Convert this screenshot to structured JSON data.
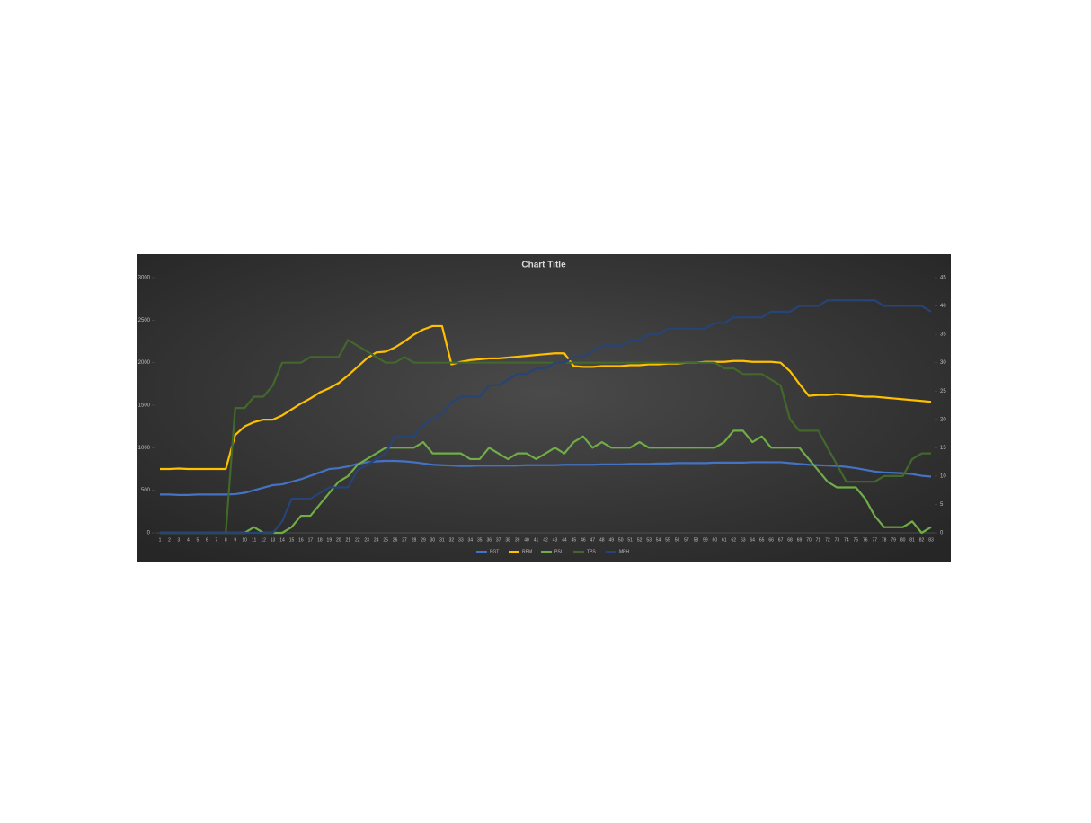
{
  "chart_data": {
    "type": "line",
    "title": "Chart Title",
    "categories": [
      "1",
      "2",
      "3",
      "4",
      "5",
      "6",
      "7",
      "8",
      "9",
      "10",
      "11",
      "12",
      "13",
      "14",
      "15",
      "16",
      "17",
      "18",
      "19",
      "20",
      "21",
      "22",
      "23",
      "24",
      "25",
      "26",
      "27",
      "28",
      "29",
      "30",
      "31",
      "32",
      "33",
      "34",
      "35",
      "36",
      "37",
      "38",
      "39",
      "40",
      "41",
      "42",
      "43",
      "44",
      "45",
      "46",
      "47",
      "48",
      "49",
      "50",
      "51",
      "52",
      "53",
      "54",
      "55",
      "56",
      "57",
      "58",
      "59",
      "60",
      "61",
      "62",
      "63",
      "64",
      "65",
      "66",
      "67",
      "68",
      "69",
      "70",
      "71",
      "72",
      "73",
      "74",
      "75",
      "76",
      "77",
      "78",
      "79",
      "80",
      "81",
      "82",
      "83"
    ],
    "ylim": [
      0,
      3000
    ],
    "yticks": [
      0,
      500,
      1000,
      1500,
      2000,
      2500,
      3000
    ],
    "y2lim": [
      0,
      45
    ],
    "y2ticks": [
      0,
      5,
      10,
      15,
      20,
      25,
      30,
      35,
      40,
      45
    ],
    "legend": "bottom",
    "series": [
      {
        "name": "EGT",
        "color": "#4472c4",
        "values": [
          450,
          450,
          445,
          445,
          450,
          450,
          450,
          450,
          455,
          470,
          500,
          530,
          560,
          570,
          600,
          630,
          670,
          710,
          750,
          760,
          780,
          810,
          830,
          840,
          845,
          845,
          840,
          830,
          815,
          800,
          795,
          790,
          785,
          785,
          790,
          790,
          790,
          790,
          790,
          795,
          795,
          795,
          795,
          800,
          800,
          800,
          800,
          805,
          805,
          805,
          810,
          810,
          810,
          815,
          815,
          820,
          820,
          820,
          820,
          825,
          825,
          825,
          825,
          830,
          830,
          830,
          830,
          820,
          810,
          800,
          795,
          790,
          785,
          775,
          760,
          740,
          720,
          710,
          705,
          700,
          690,
          670,
          660
        ]
      },
      {
        "name": "RPM",
        "color": "#ffc000",
        "values": [
          750,
          750,
          755,
          750,
          750,
          750,
          750,
          750,
          1150,
          1250,
          1300,
          1330,
          1330,
          1380,
          1450,
          1520,
          1580,
          1650,
          1700,
          1760,
          1850,
          1950,
          2050,
          2120,
          2130,
          2180,
          2250,
          2330,
          2390,
          2430,
          2430,
          1980,
          2010,
          2030,
          2040,
          2050,
          2050,
          2060,
          2070,
          2080,
          2090,
          2100,
          2110,
          2110,
          1960,
          1950,
          1950,
          1960,
          1960,
          1960,
          1970,
          1970,
          1980,
          1980,
          1990,
          1990,
          2000,
          2000,
          2010,
          2010,
          2010,
          2020,
          2020,
          2010,
          2010,
          2010,
          2000,
          1900,
          1750,
          1610,
          1620,
          1620,
          1630,
          1620,
          1610,
          1600,
          1600,
          1590,
          1580,
          1570,
          1560,
          1550,
          1540
        ]
      },
      {
        "name": "PSI",
        "color": "#70ad47",
        "axis": "y2",
        "values": [
          0,
          0,
          0,
          0,
          0,
          0,
          0,
          0,
          0,
          0,
          1,
          0,
          0,
          0,
          1,
          3,
          3,
          5,
          7,
          9,
          10,
          12,
          13,
          14,
          15,
          15,
          15,
          15,
          16,
          14,
          14,
          14,
          14,
          13,
          13,
          15,
          14,
          13,
          14,
          14,
          13,
          14,
          15,
          14,
          16,
          17,
          15,
          16,
          15,
          15,
          15,
          16,
          15,
          15,
          15,
          15,
          15,
          15,
          15,
          15,
          16,
          18,
          18,
          16,
          17,
          15,
          15,
          15,
          15,
          13,
          11,
          9,
          8,
          8,
          8,
          6,
          3,
          1,
          1,
          1,
          2,
          0,
          1
        ]
      },
      {
        "name": "TPS",
        "color": "#43682b",
        "axis": "y2",
        "values": [
          0,
          0,
          0,
          0,
          0,
          0,
          0,
          0,
          22,
          22,
          24,
          24,
          26,
          30,
          30,
          30,
          31,
          31,
          31,
          31,
          34,
          33,
          32,
          31,
          30,
          30,
          31,
          30,
          30,
          30,
          30,
          30,
          30,
          30,
          30,
          30,
          30,
          30,
          30,
          30,
          30,
          30,
          30,
          30,
          30,
          30,
          30,
          30,
          30,
          30,
          30,
          30,
          30,
          30,
          30,
          30,
          30,
          30,
          30,
          30,
          29,
          29,
          28,
          28,
          28,
          27,
          26,
          20,
          18,
          18,
          18,
          15,
          12,
          9,
          9,
          9,
          9,
          10,
          10,
          10,
          13,
          14,
          14
        ]
      },
      {
        "name": "MPH",
        "color": "#264478",
        "axis": "y2",
        "values": [
          0,
          0,
          0,
          0,
          0,
          0,
          0,
          0,
          0,
          0,
          0,
          0,
          0,
          2,
          6,
          6,
          6,
          7,
          8,
          8,
          8,
          11,
          12,
          13,
          14,
          17,
          17,
          17,
          19,
          20,
          21,
          23,
          24,
          24,
          24,
          26,
          26,
          27,
          28,
          28,
          29,
          29,
          30,
          30,
          31,
          31,
          32,
          33,
          33,
          33,
          34,
          34,
          35,
          35,
          36,
          36,
          36,
          36,
          36,
          37,
          37,
          38,
          38,
          38,
          38,
          39,
          39,
          39,
          40,
          40,
          40,
          41,
          41,
          41,
          41,
          41,
          41,
          40,
          40,
          40,
          40,
          40,
          39
        ]
      }
    ]
  }
}
